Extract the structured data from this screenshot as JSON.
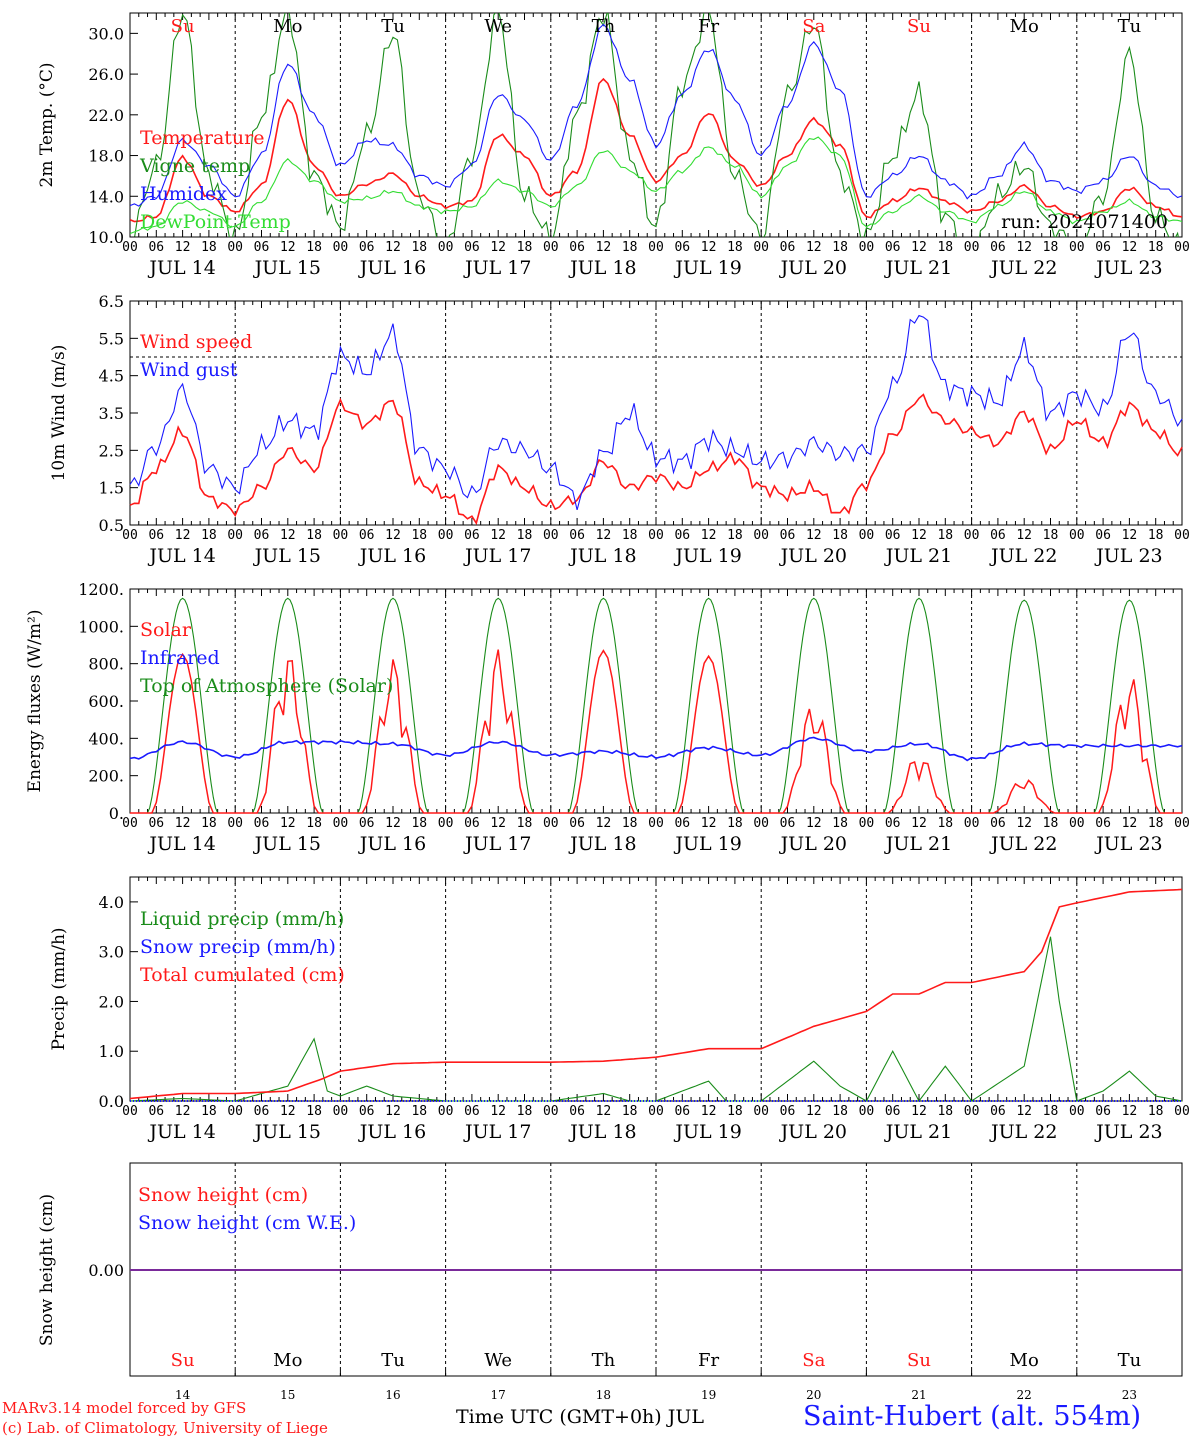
{
  "station": "Saint-Hubert (alt. 554m)",
  "footer": {
    "model": "MARv3.14 model forced by GFS",
    "credit": "(c) Lab. of Climatology, University of Liege",
    "xlabel": "Time UTC (GMT+0h) JUL"
  },
  "colors": {
    "red": "#ff1a1a",
    "blue": "#1a1aff",
    "green": "#1a8c1a",
    "lightgreen": "#33dd33",
    "purple": "#7a2a9a"
  },
  "days": [
    {
      "dow": "Su",
      "date": "JUL 14",
      "num": "14",
      "weekend": true
    },
    {
      "dow": "Mo",
      "date": "JUL 15",
      "num": "15",
      "weekend": false
    },
    {
      "dow": "Tu",
      "date": "JUL 16",
      "num": "16",
      "weekend": false
    },
    {
      "dow": "We",
      "date": "JUL 17",
      "num": "17",
      "weekend": false
    },
    {
      "dow": "Th",
      "date": "JUL 18",
      "num": "18",
      "weekend": false
    },
    {
      "dow": "Fr",
      "date": "JUL 19",
      "num": "19",
      "weekend": false
    },
    {
      "dow": "Sa",
      "date": "JUL 20",
      "num": "20",
      "weekend": true
    },
    {
      "dow": "Su",
      "date": "JUL 21",
      "num": "21",
      "weekend": true
    },
    {
      "dow": "Mo",
      "date": "JUL 22",
      "num": "22",
      "weekend": false
    },
    {
      "dow": "Tu",
      "date": "JUL 23",
      "num": "23",
      "weekend": false
    }
  ],
  "hour_ticks": [
    "00",
    "06",
    "12",
    "18"
  ],
  "chart_data": [
    {
      "type": "line",
      "ylabel": "2m Temp. (°C)",
      "ylim": [
        10,
        32
      ],
      "yticks": [
        "10.0",
        "14.0",
        "18.0",
        "22.0",
        "26.0",
        "30.0"
      ],
      "annotation": "run: 2024071400",
      "x_unit": "hours since JUL 14 00 UTC",
      "series": [
        {
          "name": "Temperature",
          "color": "#ff1a1a",
          "x": [
            0,
            6,
            12,
            18,
            24,
            30,
            36,
            42,
            48,
            54,
            60,
            66,
            72,
            78,
            84,
            90,
            96,
            102,
            108,
            114,
            120,
            126,
            132,
            138,
            144,
            150,
            156,
            162,
            168,
            174,
            180,
            186,
            192,
            198,
            204,
            210,
            216,
            222,
            228,
            234,
            240
          ],
          "y": [
            11.5,
            12,
            17.8,
            14,
            12.5,
            15,
            23.5,
            17,
            14,
            15.2,
            16.2,
            14,
            13,
            13.5,
            20,
            18,
            14,
            16.5,
            25.5,
            20,
            15.5,
            18,
            22.2,
            17.5,
            15,
            18,
            21.5,
            19,
            12,
            13.5,
            14.8,
            13.5,
            12.5,
            13.5,
            15,
            13,
            12,
            12.5,
            14.8,
            13,
            12
          ]
        },
        {
          "name": "Vigne temp",
          "color": "#1a8c1a",
          "x": [
            0,
            6,
            12,
            18,
            24,
            30,
            36,
            42,
            48,
            54,
            60,
            66,
            72,
            78,
            84,
            90,
            96,
            102,
            108,
            114,
            120,
            126,
            132,
            138,
            144,
            150,
            156,
            162,
            168,
            174,
            180,
            186,
            192,
            198,
            204,
            210,
            216,
            222,
            228,
            234,
            240
          ],
          "y": [
            10,
            17,
            32,
            16,
            10,
            22,
            32,
            16,
            11,
            20,
            30,
            14,
            9,
            18,
            32,
            14,
            10,
            22,
            32,
            18,
            11,
            25,
            32,
            16,
            10,
            24,
            31,
            16,
            10,
            18,
            24,
            12,
            8,
            14,
            17,
            11,
            9,
            14,
            28,
            12,
            9
          ]
        },
        {
          "name": "Humidex",
          "color": "#1a1aff",
          "x": [
            0,
            6,
            12,
            18,
            24,
            30,
            36,
            42,
            48,
            54,
            60,
            66,
            72,
            78,
            84,
            90,
            96,
            102,
            108,
            114,
            120,
            126,
            132,
            138,
            144,
            150,
            156,
            162,
            168,
            174,
            180,
            186,
            192,
            198,
            204,
            210,
            216,
            222,
            228,
            234,
            240
          ],
          "y": [
            13,
            14,
            19.5,
            17,
            14,
            18,
            27,
            22,
            17,
            19.5,
            19,
            16,
            15,
            17,
            24,
            21.5,
            17.5,
            23,
            30.8,
            25.5,
            19,
            24,
            28.5,
            23.5,
            18,
            23,
            29,
            24.5,
            14,
            16,
            18,
            15.5,
            14,
            16,
            19,
            15.5,
            14.5,
            15.5,
            18,
            15,
            14
          ]
        },
        {
          "name": "DewPoint Temp",
          "color": "#33dd33",
          "x": [
            0,
            6,
            12,
            18,
            24,
            30,
            36,
            42,
            48,
            54,
            60,
            66,
            72,
            78,
            84,
            90,
            96,
            102,
            108,
            114,
            120,
            126,
            132,
            138,
            144,
            150,
            156,
            162,
            168,
            174,
            180,
            186,
            192,
            198,
            204,
            210,
            216,
            222,
            228,
            234,
            240
          ],
          "y": [
            10.5,
            11,
            13.5,
            12.5,
            11,
            13.5,
            17.5,
            15.5,
            13.5,
            13.8,
            14.5,
            13,
            12.5,
            13,
            15.5,
            14.5,
            13,
            15,
            18.5,
            16.5,
            14.5,
            16.5,
            18.8,
            17,
            14,
            17,
            19.8,
            18,
            11,
            12.5,
            14,
            12.5,
            11.5,
            13,
            14.5,
            12.5,
            11.5,
            12.5,
            13.5,
            12,
            11.5
          ]
        }
      ]
    },
    {
      "type": "line",
      "ylabel": "10m Wind (m/s)",
      "ylim": [
        0.5,
        6.5
      ],
      "yticks": [
        "0.5",
        "1.5",
        "2.5",
        "3.5",
        "4.5",
        "5.5",
        "6.5"
      ],
      "reference_line": 5.0,
      "series": [
        {
          "name": "Wind speed",
          "color": "#ff1a1a",
          "x": [
            0,
            6,
            12,
            18,
            24,
            30,
            36,
            42,
            48,
            54,
            60,
            66,
            72,
            78,
            84,
            90,
            96,
            102,
            108,
            114,
            120,
            126,
            132,
            138,
            144,
            150,
            156,
            162,
            168,
            174,
            180,
            186,
            192,
            198,
            204,
            210,
            216,
            222,
            228,
            234,
            240
          ],
          "y": [
            1.0,
            2.0,
            3.0,
            1.2,
            0.9,
            1.5,
            2.5,
            2.0,
            3.7,
            3.2,
            3.8,
            1.6,
            1.3,
            0.6,
            2.0,
            1.5,
            1.0,
            1.2,
            2.2,
            1.5,
            1.8,
            1.5,
            2.0,
            2.3,
            1.5,
            1.3,
            1.5,
            0.8,
            1.6,
            2.9,
            3.9,
            3.3,
            3.0,
            2.7,
            3.5,
            2.5,
            3.3,
            2.7,
            3.7,
            3.0,
            2.4
          ]
        },
        {
          "name": "Wind gust",
          "color": "#1a1aff",
          "x": [
            0,
            6,
            12,
            18,
            24,
            30,
            36,
            42,
            48,
            54,
            60,
            66,
            72,
            78,
            84,
            90,
            96,
            102,
            108,
            114,
            120,
            126,
            132,
            138,
            144,
            150,
            156,
            162,
            168,
            174,
            180,
            186,
            192,
            198,
            204,
            210,
            216,
            222,
            228,
            234,
            240
          ],
          "y": [
            1.5,
            2.6,
            4.1,
            2.0,
            1.5,
            2.6,
            3.3,
            3.0,
            5.0,
            4.6,
            5.6,
            2.5,
            2.0,
            1.3,
            2.7,
            2.5,
            2.0,
            1.2,
            2.4,
            3.5,
            2.3,
            2.2,
            2.8,
            2.5,
            2.2,
            2.3,
            2.7,
            2.4,
            2.5,
            4.2,
            6.2,
            4.2,
            4.0,
            3.8,
            5.2,
            3.5,
            4.0,
            3.6,
            5.7,
            4.0,
            3.3
          ]
        }
      ]
    },
    {
      "type": "line",
      "ylabel": "Energy fluxes (W/m²)",
      "ylim": [
        0,
        1200
      ],
      "yticks": [
        "0.",
        "200.",
        "400.",
        "600.",
        "800.",
        "1000.",
        "1200."
      ],
      "series": [
        {
          "name": "Solar",
          "color": "#ff1a1a",
          "daily_peak": [
            850,
            870,
            830,
            880,
            870,
            840,
            600,
            320,
            190,
            750
          ]
        },
        {
          "name": "Infrared",
          "color": "#1a1aff",
          "x": [
            0,
            12,
            24,
            36,
            48,
            60,
            72,
            84,
            96,
            108,
            120,
            132,
            144,
            156,
            168,
            180,
            192,
            204,
            216,
            228,
            240
          ],
          "y": [
            290,
            380,
            300,
            380,
            380,
            370,
            310,
            380,
            310,
            330,
            300,
            350,
            310,
            400,
            330,
            370,
            290,
            370,
            360,
            360,
            360
          ]
        },
        {
          "name": "Top of Atmosphere (Solar)",
          "color": "#1a8c1a",
          "daily_peak": [
            1150,
            1150,
            1150,
            1150,
            1150,
            1150,
            1150,
            1150,
            1140,
            1140
          ]
        }
      ]
    },
    {
      "type": "line",
      "ylabel": "Precip (mm/h)",
      "ylim": [
        0,
        4.5
      ],
      "yticks": [
        "0.0",
        "1.0",
        "2.0",
        "3.0",
        "4.0"
      ],
      "series": [
        {
          "name": "Liquid precip (mm/h)",
          "color": "#1a8c1a",
          "x": [
            0,
            12,
            24,
            36,
            42,
            45,
            48,
            54,
            60,
            72,
            96,
            108,
            114,
            120,
            132,
            136,
            144,
            156,
            162,
            168,
            174,
            180,
            186,
            192,
            204,
            210,
            212,
            214,
            216,
            222,
            228,
            234,
            240
          ],
          "y": [
            0,
            0.05,
            0,
            0.3,
            1.25,
            0.2,
            0.1,
            0.3,
            0.1,
            0,
            0,
            0.15,
            0,
            0,
            0.4,
            0,
            0,
            0.8,
            0.3,
            0,
            1.0,
            0,
            0.7,
            0,
            0.7,
            3.3,
            2.0,
            1.0,
            0,
            0.2,
            0.6,
            0.1,
            0
          ]
        },
        {
          "name": "Snow precip (mm/h)",
          "color": "#1a1aff",
          "x": [
            0,
            240
          ],
          "y": [
            0,
            0
          ]
        },
        {
          "name": "Total cumulated (cm)",
          "color": "#ff1a1a",
          "x": [
            0,
            12,
            24,
            36,
            44,
            48,
            60,
            72,
            84,
            96,
            108,
            120,
            132,
            144,
            156,
            168,
            174,
            180,
            186,
            192,
            204,
            208,
            212,
            216,
            228,
            240
          ],
          "y": [
            0.05,
            0.15,
            0.15,
            0.2,
            0.45,
            0.6,
            0.75,
            0.78,
            0.78,
            0.78,
            0.8,
            0.88,
            1.05,
            1.05,
            1.5,
            1.8,
            2.15,
            2.15,
            2.38,
            2.38,
            2.6,
            3.0,
            3.9,
            3.98,
            4.2,
            4.25
          ]
        }
      ]
    },
    {
      "type": "line",
      "ylabel": "Snow height (cm)",
      "ytick": "0.00",
      "series": [
        {
          "name": "Snow height (cm)",
          "color": "#ff1a1a",
          "value": 0.0
        },
        {
          "name": "Snow height (cm W.E.)",
          "color": "#1a1aff",
          "value": 0.0
        }
      ]
    }
  ]
}
